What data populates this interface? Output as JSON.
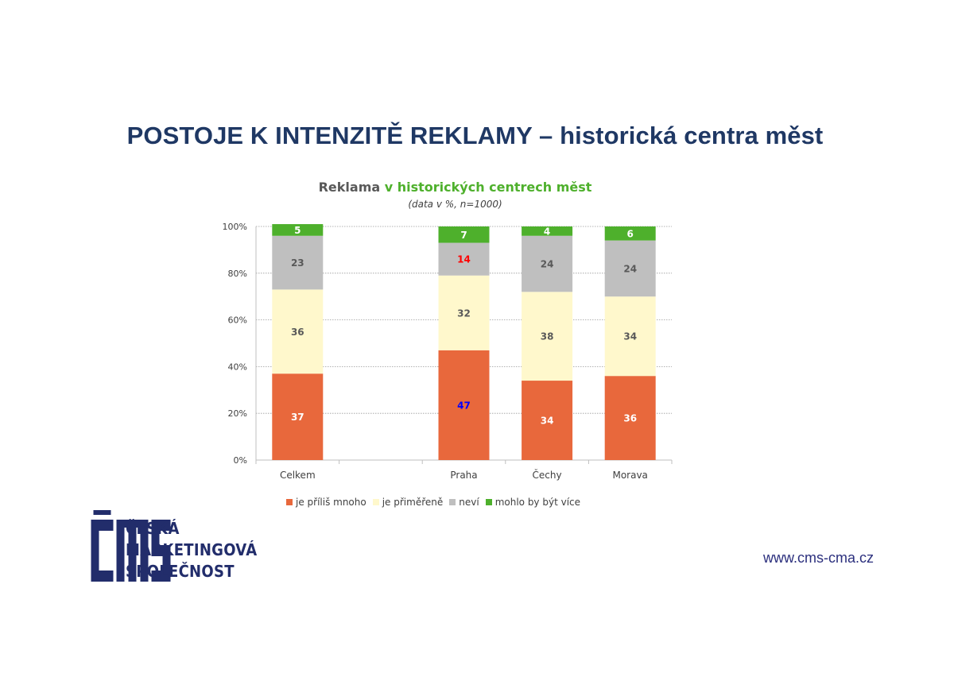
{
  "slide_title": "POSTOJE K INTENZITĚ REKLAMY – historická centra měst",
  "chart_data": {
    "type": "bar",
    "stacked": true,
    "percent": true,
    "title": "Reklama v historických centrech měst",
    "title_parts": [
      "Reklama",
      "v historických centrech měst"
    ],
    "subtitle": "(data v %, n=1000)",
    "categories": [
      "Celkem",
      "",
      "Praha",
      "Čechy",
      "Morava"
    ],
    "series": [
      {
        "name": "je příliš mnoho",
        "color": "#e8683c",
        "values": [
          37,
          null,
          47,
          34,
          36
        ]
      },
      {
        "name": "je přiměřeně",
        "color": "#fff8cc",
        "values": [
          36,
          null,
          32,
          38,
          34
        ]
      },
      {
        "name": "neví",
        "color": "#bfbfbf",
        "values": [
          23,
          null,
          14,
          24,
          24
        ]
      },
      {
        "name": "mohlo by být více",
        "color": "#4eb02c",
        "values": [
          5,
          null,
          7,
          4,
          6
        ]
      }
    ],
    "highlighted_labels": [
      {
        "series": "je příliš mnoho",
        "category": "Praha",
        "color": "#0000ff"
      },
      {
        "series": "neví",
        "category": "Praha",
        "color": "#ff0000"
      }
    ],
    "y_ticks": [
      "0%",
      "20%",
      "40%",
      "60%",
      "80%",
      "100%"
    ],
    "ylim": [
      0,
      100
    ],
    "grid": true,
    "legend": "bottom"
  },
  "logo": {
    "lines": [
      "ČESKÁ",
      "MARKETINGOVÁ",
      "SPOLEČNOST"
    ],
    "mark": "CMS",
    "color": "#222d6b"
  },
  "website": "www.cms-cma.cz"
}
